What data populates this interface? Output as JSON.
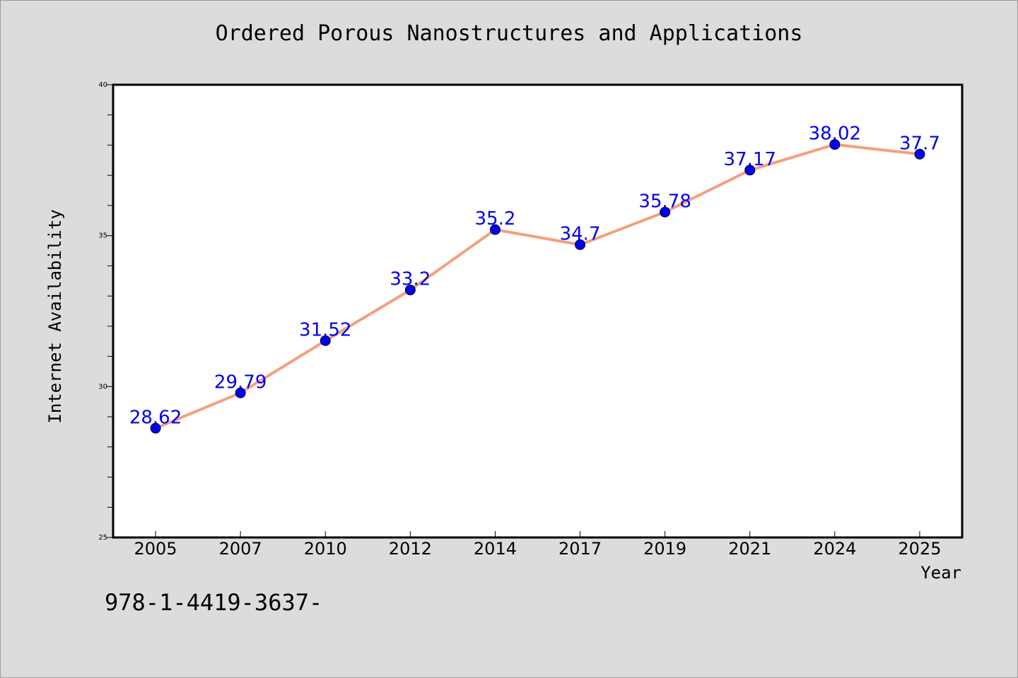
{
  "chart_data": {
    "type": "line",
    "title": "Ordered Porous Nanostructures and Applications",
    "xlabel": "Year",
    "ylabel": "Internet Availability",
    "categories": [
      "2005",
      "2007",
      "2010",
      "2012",
      "2014",
      "2017",
      "2019",
      "2021",
      "2024",
      "2025"
    ],
    "values": [
      28.62,
      29.79,
      31.52,
      33.2,
      35.2,
      34.7,
      35.78,
      37.17,
      38.02,
      37.7
    ],
    "ylim": [
      25,
      40
    ],
    "yticks": [
      25,
      30,
      35,
      40
    ],
    "grid": false,
    "line_color": "#f4a07e",
    "marker_color": "#0000ee",
    "label_color": "#0000ee"
  },
  "footer": {
    "code": "978-1-4419-3637-"
  }
}
